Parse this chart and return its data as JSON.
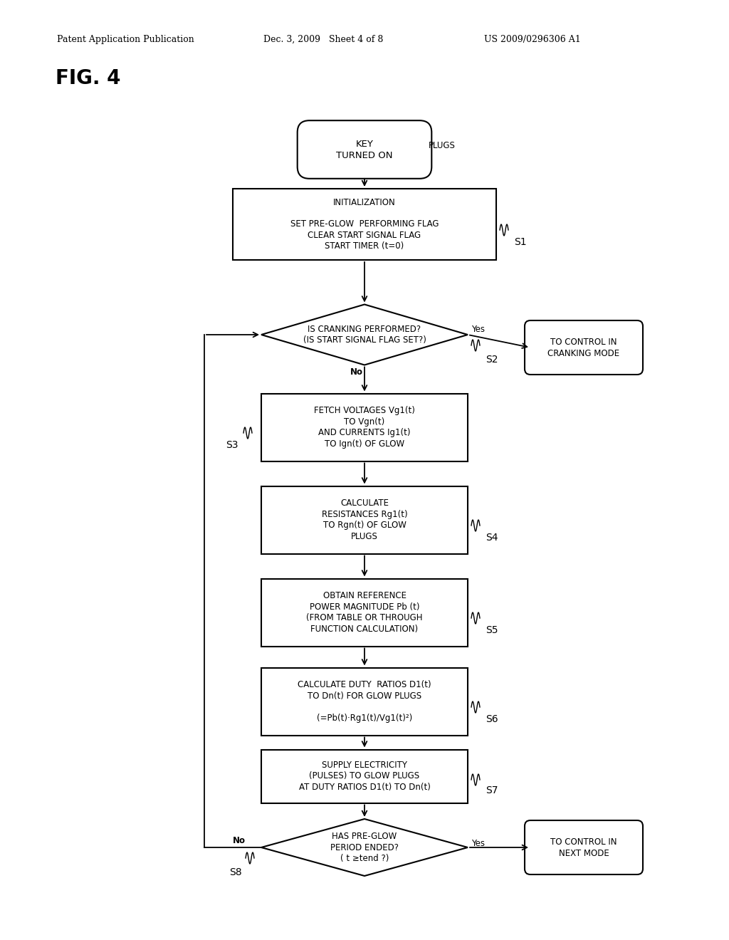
{
  "bg_color": "#ffffff",
  "header_left": "Patent Application Publication",
  "header_mid": "Dec. 3, 2009   Sheet 4 of 8",
  "header_right": "US 2009/0296306 A1",
  "fig_label": "FIG. 4",
  "line_color": "#000000",
  "text_color": "#000000"
}
